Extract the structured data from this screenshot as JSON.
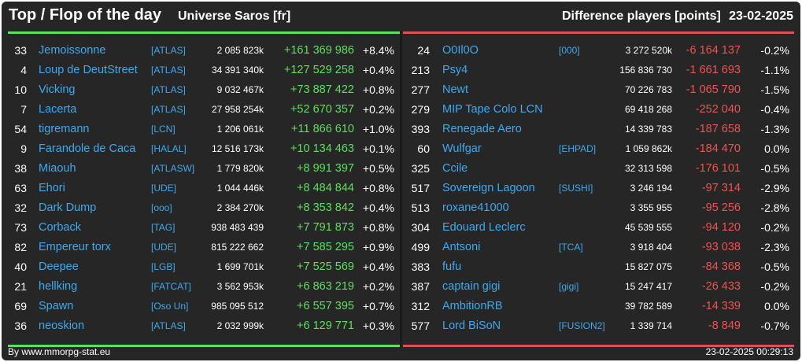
{
  "header": {
    "title": "Top / Flop of the day",
    "universe": "Universe Saros [fr]",
    "metric": "Difference players [points]",
    "date": "23-02-2025"
  },
  "top": [
    {
      "rank": "33",
      "name": "Jemoissonne",
      "alliance": "[ATLAS]",
      "points": "2 085 823k",
      "diff": "+161 369 986",
      "pct": "+8.4%"
    },
    {
      "rank": "4",
      "name": "Loup de DeutStreet",
      "alliance": "[ATLAS]",
      "points": "34 391 340k",
      "diff": "+127 529 258",
      "pct": "+0.4%"
    },
    {
      "rank": "10",
      "name": "Vicking",
      "alliance": "[ATLAS]",
      "points": "9 032 467k",
      "diff": "+73 887 422",
      "pct": "+0.8%"
    },
    {
      "rank": "7",
      "name": "Lacerta",
      "alliance": "[ATLAS]",
      "points": "27 958 254k",
      "diff": "+52 670 357",
      "pct": "+0.2%"
    },
    {
      "rank": "54",
      "name": "tigremann",
      "alliance": "[LCN]",
      "points": "1 206 061k",
      "diff": "+11 866 610",
      "pct": "+1.0%"
    },
    {
      "rank": "9",
      "name": "Farandole de Caca",
      "alliance": "[HALAL]",
      "points": "12 516 173k",
      "diff": "+10 134 463",
      "pct": "+0.1%"
    },
    {
      "rank": "38",
      "name": "Miaouh",
      "alliance": "[ATLASW]",
      "points": "1 779 820k",
      "diff": "+8 991 397",
      "pct": "+0.5%"
    },
    {
      "rank": "63",
      "name": "Ehori",
      "alliance": "[UDE]",
      "points": "1 044 446k",
      "diff": "+8 484 844",
      "pct": "+0.8%"
    },
    {
      "rank": "32",
      "name": "Dark Dump",
      "alliance": "[ooo]",
      "points": "2 384 270k",
      "diff": "+8 353 842",
      "pct": "+0.4%"
    },
    {
      "rank": "73",
      "name": "Corback",
      "alliance": "[TAG]",
      "points": "938 483 439",
      "diff": "+7 791 873",
      "pct": "+0.8%"
    },
    {
      "rank": "82",
      "name": "Empereur torx",
      "alliance": "[UDE]",
      "points": "815 222 662",
      "diff": "+7 585 295",
      "pct": "+0.9%"
    },
    {
      "rank": "40",
      "name": "Deepee",
      "alliance": "[LGB]",
      "points": "1 699 701k",
      "diff": "+7 525 569",
      "pct": "+0.4%"
    },
    {
      "rank": "21",
      "name": "hellking",
      "alliance": "[FATCAT]",
      "points": "3 562 953k",
      "diff": "+6 863 219",
      "pct": "+0.2%"
    },
    {
      "rank": "69",
      "name": "Spawn",
      "alliance": "[Oso Un]",
      "points": "985 095 512",
      "diff": "+6 557 395",
      "pct": "+0.7%"
    },
    {
      "rank": "36",
      "name": "neoskion",
      "alliance": "[ATLAS]",
      "points": "2 032 999k",
      "diff": "+6 129 771",
      "pct": "+0.3%"
    }
  ],
  "flop": [
    {
      "rank": "24",
      "name": "O0Il0O",
      "alliance": "[000]",
      "points": "3 272 520k",
      "diff": "-6 164 137",
      "pct": "-0.2%"
    },
    {
      "rank": "213",
      "name": "Psy4",
      "alliance": "",
      "points": "156 836 730",
      "diff": "-1 661 693",
      "pct": "-1.1%"
    },
    {
      "rank": "277",
      "name": "Newt",
      "alliance": "",
      "points": "70 226 783",
      "diff": "-1 065 790",
      "pct": "-1.5%"
    },
    {
      "rank": "279",
      "name": "MIP Tape Colo LCN",
      "alliance": "",
      "points": "69 418 268",
      "diff": "-252 040",
      "pct": "-0.4%"
    },
    {
      "rank": "393",
      "name": "Renegade Aero",
      "alliance": "",
      "points": "14 339 783",
      "diff": "-187 658",
      "pct": "-1.3%"
    },
    {
      "rank": "60",
      "name": "Wulfgar",
      "alliance": "[EHPAD]",
      "points": "1 059 862k",
      "diff": "-184 470",
      "pct": "0.0%"
    },
    {
      "rank": "325",
      "name": "Ccile",
      "alliance": "",
      "points": "32 313 598",
      "diff": "-176 101",
      "pct": "-0.5%"
    },
    {
      "rank": "517",
      "name": "Sovereign Lagoon",
      "alliance": "[SUSHI]",
      "points": "3 246 194",
      "diff": "-97 314",
      "pct": "-2.9%"
    },
    {
      "rank": "513",
      "name": "roxane41000",
      "alliance": "",
      "points": "3 355 955",
      "diff": "-95 256",
      "pct": "-2.8%"
    },
    {
      "rank": "304",
      "name": "Edouard Leclerc",
      "alliance": "",
      "points": "45 539 555",
      "diff": "-94 120",
      "pct": "-0.2%"
    },
    {
      "rank": "499",
      "name": "Antsoni",
      "alliance": "[TCA]",
      "points": "3 918 404",
      "diff": "-93 038",
      "pct": "-2.3%"
    },
    {
      "rank": "383",
      "name": "fufu",
      "alliance": "",
      "points": "15 827 075",
      "diff": "-84 368",
      "pct": "-0.5%"
    },
    {
      "rank": "387",
      "name": "captain gigi",
      "alliance": "[gigi]",
      "points": "15 247 417",
      "diff": "-26 433",
      "pct": "-0.2%"
    },
    {
      "rank": "312",
      "name": "AmbitionRB",
      "alliance": "",
      "points": "39 782 589",
      "diff": "-14 339",
      "pct": "0.0%"
    },
    {
      "rank": "577",
      "name": "Lord BiSoN",
      "alliance": "[FUSION2]",
      "points": "1 339 714",
      "diff": "-8 849",
      "pct": "-0.7%"
    }
  ],
  "footer": {
    "site": "By www.mmorpg-stat.eu",
    "timestamp": "23-02-2025 00:29:13"
  },
  "colors": {
    "background": "#262626",
    "name": "#3fa9ef",
    "gain": "#5de05d",
    "loss": "#ef5350"
  }
}
